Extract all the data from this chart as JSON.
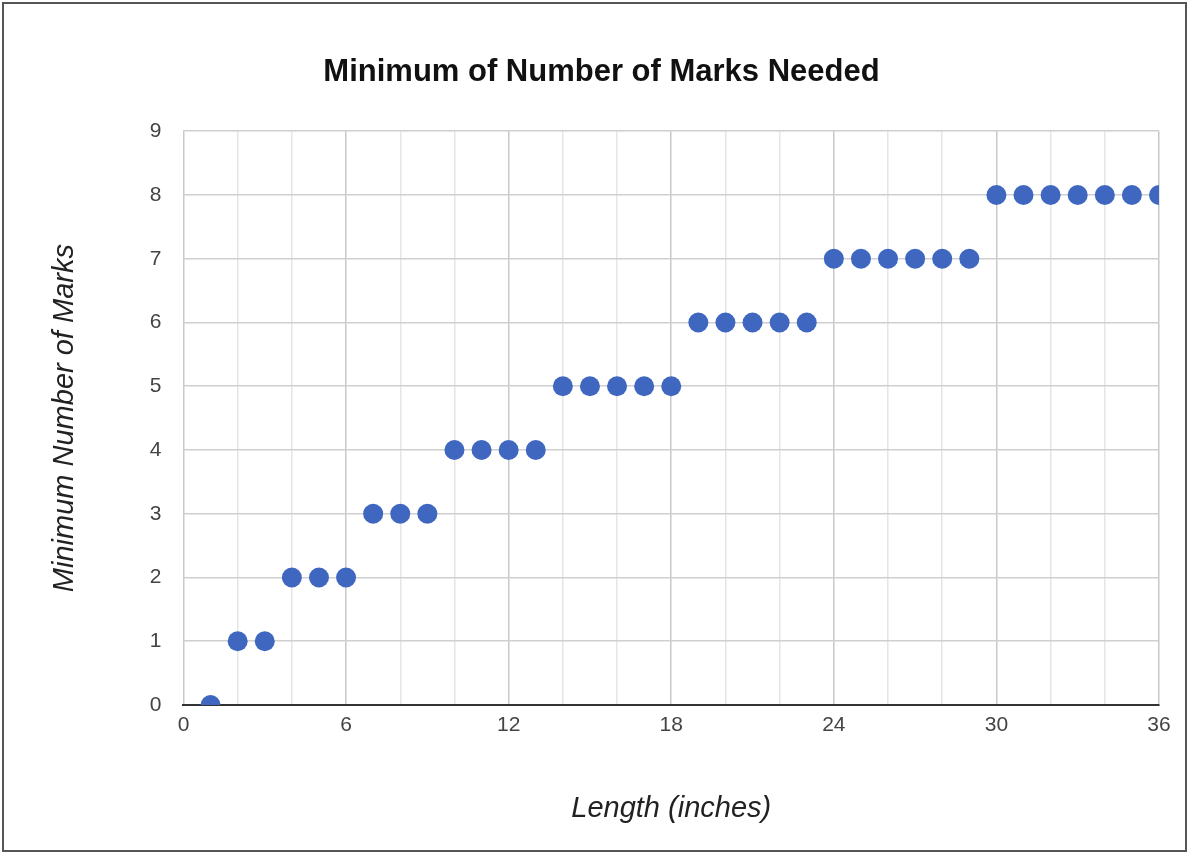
{
  "chart_data": {
    "type": "scatter",
    "title": "Minimum of Number of Marks Needed",
    "xlabel": "Length (inches)",
    "ylabel": "Minimum Number of Marks",
    "x": [
      1,
      2,
      3,
      4,
      5,
      6,
      7,
      8,
      9,
      10,
      11,
      12,
      13,
      14,
      15,
      16,
      17,
      18,
      19,
      20,
      21,
      22,
      23,
      24,
      25,
      26,
      27,
      28,
      29,
      30,
      31,
      32,
      33,
      34,
      35,
      36
    ],
    "series": [
      {
        "color": "#3f67c0",
        "values": [
          0,
          1,
          1,
          2,
          2,
          2,
          3,
          3,
          3,
          4,
          4,
          4,
          4,
          5,
          5,
          5,
          5,
          5,
          6,
          6,
          6,
          6,
          6,
          7,
          7,
          7,
          7,
          7,
          7,
          8,
          8,
          8,
          8,
          8,
          8,
          8
        ]
      }
    ],
    "xlim": [
      0,
      36
    ],
    "xticks": [
      0,
      {
        "value": 2,
        "label": null
      },
      {
        "value": 4,
        "label": null
      },
      6,
      {
        "value": 8,
        "label": null
      },
      {
        "value": 10,
        "label": null
      },
      12,
      {
        "value": 14,
        "label": null
      },
      {
        "value": 16,
        "label": null
      },
      18,
      {
        "value": 20,
        "label": null
      },
      {
        "value": 22,
        "label": null
      },
      24,
      {
        "value": 26,
        "label": null
      },
      {
        "value": 28,
        "label": null
      },
      30,
      {
        "value": 32,
        "label": null
      },
      {
        "value": 34,
        "label": null
      },
      36
    ],
    "ylim": [
      0,
      9
    ],
    "yticks": [
      0,
      1,
      2,
      3,
      4,
      5,
      6,
      7,
      8,
      9
    ],
    "grid": true,
    "legend": false,
    "marker": "circle"
  }
}
